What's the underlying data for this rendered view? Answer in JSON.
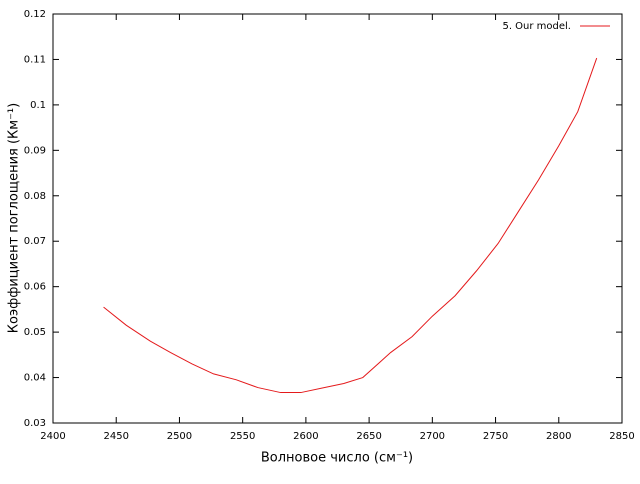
{
  "chart_data": {
    "type": "line",
    "xlabel": "Волновое число (см⁻¹)",
    "ylabel": "Коэффициент поглощения (Км⁻¹)",
    "xlim": [
      2400,
      2850
    ],
    "xticks": [
      2400,
      2450,
      2500,
      2550,
      2600,
      2650,
      2700,
      2750,
      2800,
      2850
    ],
    "ylim": [
      0.03,
      0.12
    ],
    "yticks": [
      0.03,
      0.04,
      0.05,
      0.06,
      0.07,
      0.08,
      0.09,
      0.1,
      0.11,
      0.12
    ],
    "legend": "top-right",
    "x": [
      2440,
      2458,
      2477,
      2493,
      2510,
      2527,
      2545,
      2562,
      2580,
      2596,
      2613,
      2630,
      2645,
      2667,
      2684,
      2700,
      2718,
      2735,
      2752,
      2768,
      2784,
      2800,
      2815,
      2822,
      2830
    ],
    "series": [
      {
        "name": "5. Our model.",
        "color": "#e41a1c",
        "values": [
          0.0555,
          0.0515,
          0.048,
          0.0455,
          0.043,
          0.0408,
          0.0395,
          0.0378,
          0.0367,
          0.0367,
          0.0377,
          0.0387,
          0.04,
          0.0455,
          0.049,
          0.0535,
          0.058,
          0.0635,
          0.0695,
          0.0765,
          0.0835,
          0.091,
          0.0985,
          0.104,
          0.1103
        ]
      }
    ]
  }
}
